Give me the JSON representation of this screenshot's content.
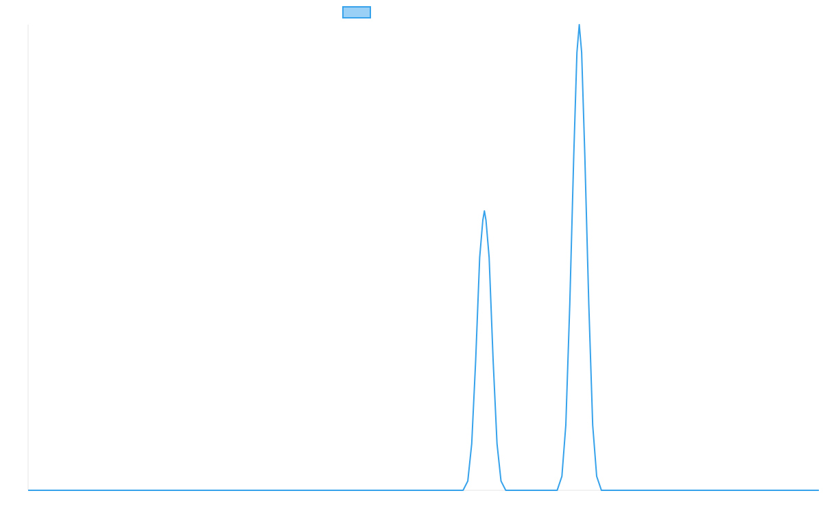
{
  "chart_data": {
    "type": "line",
    "title": "",
    "xlabel": "",
    "ylabel": "",
    "xlim": [
      0,
      100
    ],
    "ylim": [
      0,
      100
    ],
    "grid": false,
    "legend": {
      "position": "top",
      "entries": [
        {
          "name": "",
          "color": "#36a2eb",
          "fill": "#9ad0f5"
        }
      ]
    },
    "series": [
      {
        "color": "#36a2eb",
        "points": [
          [
            0,
            0
          ],
          [
            55,
            0
          ],
          [
            55.6,
            2
          ],
          [
            56.1,
            10
          ],
          [
            56.6,
            28
          ],
          [
            57.1,
            50
          ],
          [
            57.5,
            58
          ],
          [
            57.7,
            60
          ],
          [
            57.9,
            58
          ],
          [
            58.3,
            50
          ],
          [
            58.8,
            28
          ],
          [
            59.3,
            10
          ],
          [
            59.8,
            2
          ],
          [
            60.4,
            0
          ],
          [
            66.9,
            0
          ],
          [
            67.5,
            3
          ],
          [
            68.0,
            14
          ],
          [
            68.5,
            40
          ],
          [
            69.0,
            72
          ],
          [
            69.4,
            94
          ],
          [
            69.7,
            100
          ],
          [
            70.0,
            94
          ],
          [
            70.4,
            72
          ],
          [
            70.9,
            40
          ],
          [
            71.4,
            14
          ],
          [
            71.9,
            3
          ],
          [
            72.5,
            0
          ],
          [
            100,
            0
          ]
        ]
      }
    ]
  }
}
